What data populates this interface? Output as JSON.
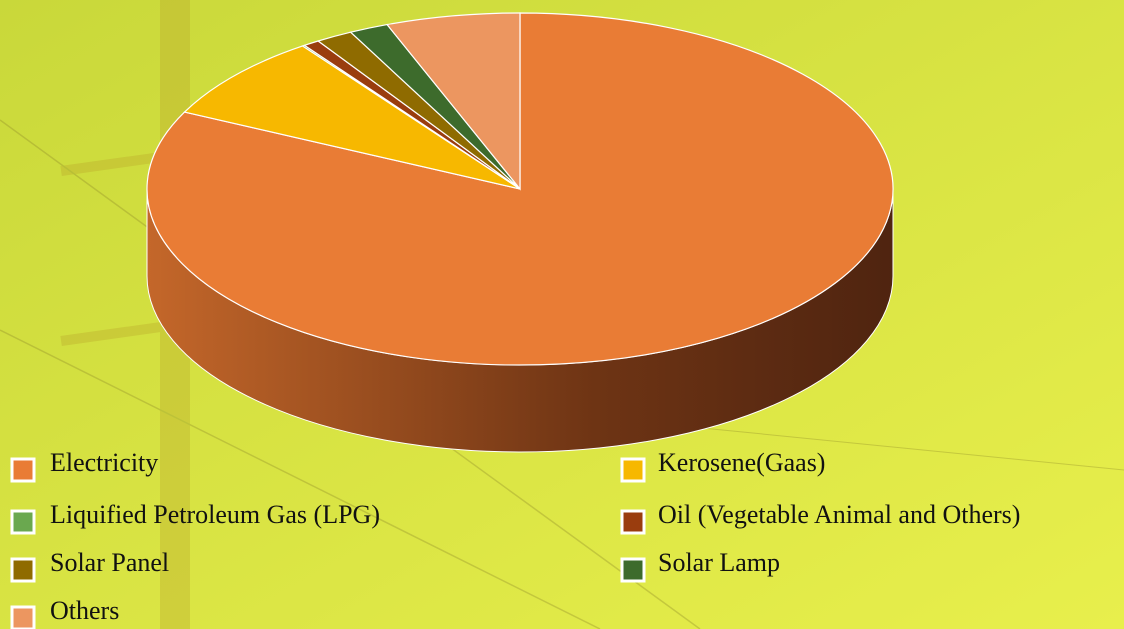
{
  "chart_data": {
    "type": "pie3d",
    "categories": [
      "Electricity",
      "Kerosene(Gaas)",
      "Liquified Petroleum Gas (LPG)",
      "Oil (Vegetable Animal and Others)",
      "Solar Panel",
      "Solar Lamp",
      "Others"
    ],
    "values": [
      82.2,
      7.9,
      0.1,
      0.7,
      1.6,
      1.7,
      5.8
    ],
    "colors": [
      "#e97c35",
      "#f7b800",
      "#6aa84f",
      "#9a3d0e",
      "#8f6b00",
      "#3d6b2c",
      "#ec9660"
    ],
    "legend": "bottom"
  }
}
